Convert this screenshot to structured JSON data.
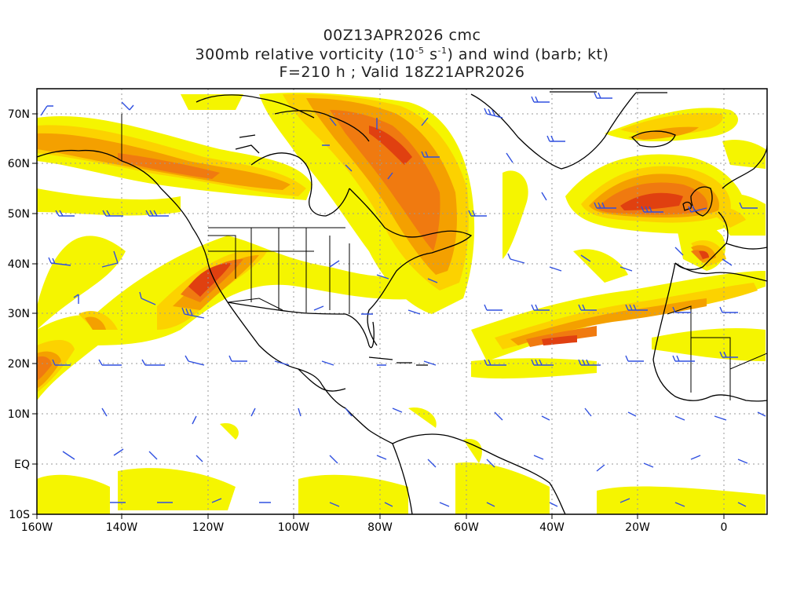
{
  "title": {
    "line1": "00Z13APR2026 cmc",
    "line2_prefix": "300mb relative vorticity (10",
    "line2_exp1": "-5",
    "line2_mid": " s",
    "line2_exp2": "-1",
    "line2_suffix": ") and wind (barb; kt)",
    "line3": "F=210 h ; Valid 18Z21APR2026"
  },
  "map": {
    "projection": "lat-lon",
    "lon_range": [
      -160,
      10
    ],
    "lat_range": [
      -10,
      75
    ],
    "lon_ticks": [
      "160W",
      "140W",
      "120W",
      "100W",
      "80W",
      "60W",
      "40W",
      "20W",
      "0"
    ],
    "lat_ticks": [
      "10S",
      "EQ",
      "10N",
      "20N",
      "30N",
      "40N",
      "50N",
      "60N",
      "70N"
    ],
    "gridlines": "dotted",
    "colors": {
      "vort_low": "#f5f500",
      "vort_mid": "#fcd200",
      "vort_high": "#f4a000",
      "vort_higher": "#f07a10",
      "vort_max": "#e04010",
      "barb": "#3050e0",
      "coast": "#000000"
    }
  }
}
